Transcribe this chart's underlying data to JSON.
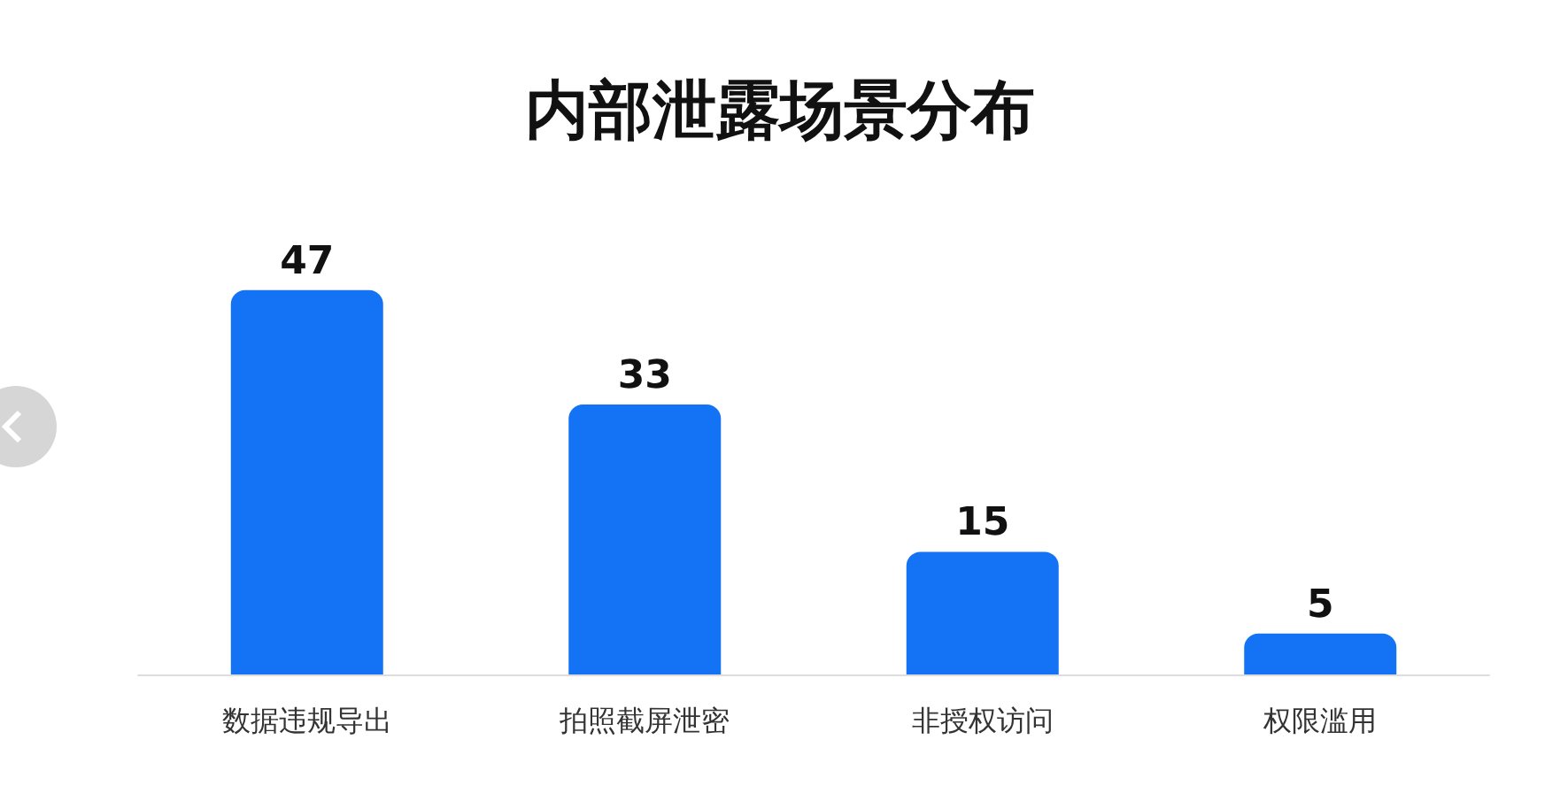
{
  "chart_data": {
    "type": "bar",
    "title": "内部泄露场景分布",
    "categories": [
      "数据违规导出",
      "拍照截屏泄密",
      "非授权访问",
      "权限滥用"
    ],
    "values": [
      47,
      33,
      15,
      5
    ],
    "color": "#1473f5",
    "data_labels": true
  }
}
